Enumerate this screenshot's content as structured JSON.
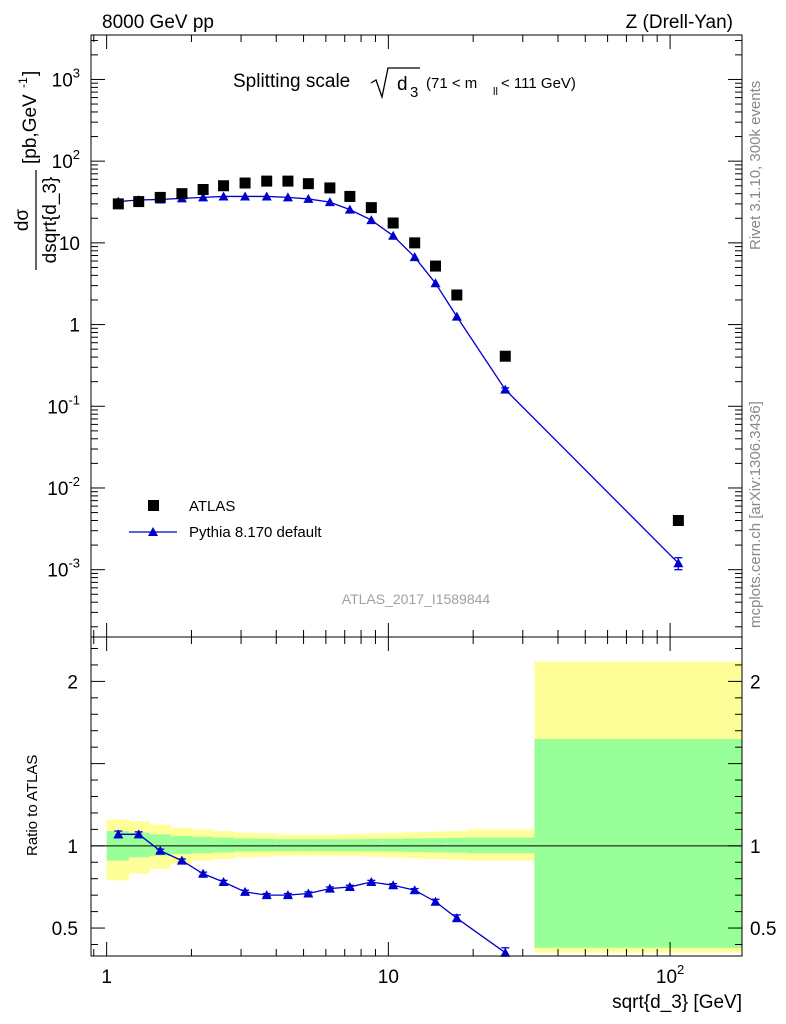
{
  "header": {
    "left": "8000 GeV pp",
    "right": "Z (Drell-Yan)"
  },
  "side_text": {
    "rivet": "Rivet 3.1.10,  300k events",
    "mcplots": "mcplots.cern.ch [arXiv:1306.3436]"
  },
  "watermark": "ATLAS_2017_I1589844",
  "colors": {
    "data": "#000000",
    "mc": "#0000cc",
    "band_inner": "#99ff99",
    "band_outer": "#ffff99"
  },
  "chart_data": [
    {
      "type": "scatter",
      "name": "main-plot",
      "title_main": "Splitting scale",
      "title_sqrt_arg": "d",
      "title_sqrt_sub": "3",
      "title_cut_pre": "(71 < m",
      "title_cut_sub": "ll",
      "title_cut_post": " < 111 GeV)",
      "ylabel_num": "dσ",
      "ylabel_den": "dsqrt{d_3}",
      "ylabel_units": "[pb,GeV",
      "ylabel_units_sup": "-1",
      "ylabel_units_close": "]",
      "xscale": "log",
      "yscale": "log",
      "xlim": [
        0.88,
        180
      ],
      "ylim": [
        0.00015,
        3500
      ],
      "yticks": [
        {
          "value": 0.001,
          "base": "10",
          "exp": "-3"
        },
        {
          "value": 0.01,
          "base": "10",
          "exp": "-2"
        },
        {
          "value": 0.1,
          "base": "10",
          "exp": "-1"
        },
        {
          "value": 1,
          "base": "1",
          "exp": ""
        },
        {
          "value": 10,
          "base": "10",
          "exp": ""
        },
        {
          "value": 100,
          "base": "10",
          "exp": "2"
        },
        {
          "value": 1000,
          "base": "10",
          "exp": "3"
        }
      ],
      "legend_position": "bottom-left",
      "series": [
        {
          "name": "ATLAS",
          "marker": "square",
          "x": [
            1.1,
            1.3,
            1.55,
            1.85,
            2.2,
            2.6,
            3.1,
            3.7,
            4.4,
            5.2,
            6.2,
            7.3,
            8.7,
            10.4,
            12.4,
            14.7,
            17.5,
            26,
            107
          ],
          "y": [
            30,
            32,
            36,
            40,
            45,
            50,
            54,
            57,
            57,
            53,
            47,
            37,
            27,
            17.5,
            10,
            5.2,
            2.3,
            0.41,
            0.004
          ]
        },
        {
          "name": "Pythia 8.170 default",
          "marker": "triangle",
          "x": [
            1.1,
            1.3,
            1.55,
            1.85,
            2.2,
            2.6,
            3.1,
            3.7,
            4.4,
            5.2,
            6.2,
            7.3,
            8.7,
            10.4,
            12.4,
            14.7,
            17.5,
            26,
            107
          ],
          "y": [
            32,
            33.5,
            34,
            35,
            36,
            37,
            37,
            37,
            36,
            34.5,
            31.5,
            25.5,
            19,
            12.2,
            6.7,
            3.2,
            1.25,
            0.16,
            0.0012
          ],
          "yerr": [
            0,
            0,
            0,
            0,
            0,
            0,
            0,
            0,
            0,
            0,
            0,
            0,
            0,
            0,
            0,
            0,
            0,
            0.008,
            0.0002
          ]
        }
      ]
    },
    {
      "type": "line",
      "name": "ratio-plot",
      "xlabel": "sqrt{d_3} [GeV]",
      "ylabel": "Ratio to ATLAS",
      "xscale": "log",
      "xlim": [
        0.88,
        180
      ],
      "ylim": [
        0.33,
        2.27
      ],
      "xticks": [
        {
          "value": 1,
          "base": "1",
          "exp": ""
        },
        {
          "value": 10,
          "base": "10",
          "exp": ""
        },
        {
          "value": 100,
          "base": "10",
          "exp": "2"
        }
      ],
      "yticks": [
        {
          "value": 0.5,
          "label": "0.5"
        },
        {
          "value": 1,
          "label": "1"
        },
        {
          "value": 2,
          "label": "2"
        }
      ],
      "bands": {
        "edges": [
          1.0,
          1.2,
          1.42,
          1.69,
          2.01,
          2.39,
          2.84,
          3.38,
          4.02,
          4.78,
          5.68,
          6.76,
          8.03,
          9.55,
          11.36,
          13.5,
          16.06,
          19.1,
          33.0,
          180
        ],
        "inner_lo": [
          0.91,
          0.93,
          0.94,
          0.95,
          0.955,
          0.96,
          0.965,
          0.967,
          0.968,
          0.968,
          0.968,
          0.967,
          0.966,
          0.965,
          0.963,
          0.96,
          0.958,
          0.955,
          0.38
        ],
        "inner_hi": [
          1.09,
          1.08,
          1.07,
          1.06,
          1.055,
          1.05,
          1.045,
          1.042,
          1.04,
          1.04,
          1.04,
          1.04,
          1.042,
          1.043,
          1.045,
          1.047,
          1.049,
          1.05,
          1.65
        ],
        "outer_lo": [
          0.79,
          0.83,
          0.86,
          0.89,
          0.91,
          0.92,
          0.93,
          0.935,
          0.94,
          0.94,
          0.94,
          0.94,
          0.935,
          0.93,
          0.925,
          0.92,
          0.915,
          0.91,
          0.35
        ],
        "outer_hi": [
          1.16,
          1.15,
          1.13,
          1.11,
          1.1,
          1.09,
          1.08,
          1.075,
          1.07,
          1.07,
          1.07,
          1.072,
          1.075,
          1.078,
          1.082,
          1.086,
          1.09,
          1.1,
          2.12
        ]
      },
      "ratio": {
        "x": [
          1.1,
          1.3,
          1.55,
          1.85,
          2.2,
          2.6,
          3.1,
          3.7,
          4.4,
          5.2,
          6.2,
          7.3,
          8.7,
          10.4,
          12.4,
          14.7,
          17.5,
          26
        ],
        "y": [
          1.07,
          1.07,
          0.97,
          0.91,
          0.83,
          0.78,
          0.72,
          0.7,
          0.7,
          0.71,
          0.74,
          0.75,
          0.78,
          0.76,
          0.73,
          0.66,
          0.56,
          0.35
        ],
        "yerr": [
          0.02,
          0.015,
          0.01,
          0.01,
          0.01,
          0.01,
          0.01,
          0.01,
          0.01,
          0.01,
          0.01,
          0.01,
          0.01,
          0.01,
          0.01,
          0.015,
          0.02,
          0.03
        ]
      }
    }
  ]
}
